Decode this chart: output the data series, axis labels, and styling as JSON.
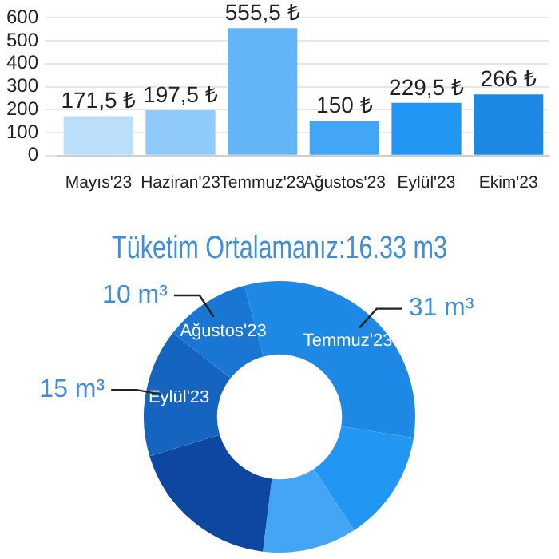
{
  "chart_data": [
    {
      "type": "bar",
      "categories": [
        "Mayıs'23",
        "Haziran'23",
        "Temmuz'23",
        "Ağustos'23",
        "Eylül'23",
        "Ekim'23"
      ],
      "values": [
        171.5,
        197.5,
        555.5,
        150,
        229.5,
        266
      ],
      "colors": [
        "#bbdefb",
        "#90caf9",
        "#64b5f6",
        "#42a5f5",
        "#2196f3",
        "#1e88e5"
      ],
      "value_labels": [
        "171,5 ₺",
        "197,5 ₺",
        "555,5 ₺",
        "150 ₺",
        "229,5 ₺",
        "266 ₺"
      ],
      "ylim": [
        0,
        600
      ],
      "yticks": [
        0,
        100,
        200,
        300,
        400,
        500,
        600
      ],
      "grid": "y"
    },
    {
      "type": "donut",
      "title": "Tüketim Ortalamanız:16.33 m3",
      "categories": [
        "Temmuz'23",
        null,
        null,
        null,
        "Eylül'23",
        "Ağustos'23"
      ],
      "values": [
        31,
        13,
        11,
        18,
        15,
        10
      ],
      "colors": [
        "#1e88e5",
        "#2196f3",
        "#42a5f5",
        "#0d47a1",
        "#1565c0",
        "#1976d2"
      ],
      "value_labels": [
        "31 m³",
        null,
        null,
        null,
        "15 m³",
        "10 m³"
      ]
    }
  ]
}
